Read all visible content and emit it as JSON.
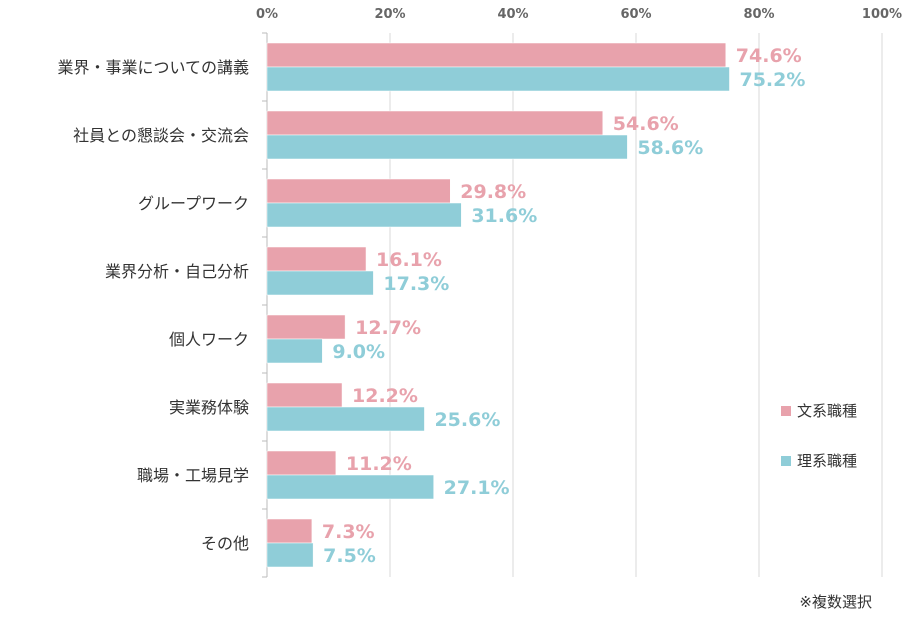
{
  "chart_data": {
    "type": "bar",
    "orientation": "horizontal",
    "categories": [
      "業界・事業についての講義",
      "社員との懇談会・交流会",
      "グループワーク",
      "業界分析・自己分析",
      "個人ワーク",
      "実業務体験",
      "職場・工場見学",
      "その他"
    ],
    "series": [
      {
        "name": "文系職種",
        "color": "#e8a2ac",
        "values": [
          74.6,
          54.6,
          29.8,
          16.1,
          12.7,
          12.2,
          11.2,
          7.3
        ]
      },
      {
        "name": "理系職種",
        "color": "#8fcdd8",
        "values": [
          75.2,
          58.6,
          31.6,
          17.3,
          9.0,
          25.6,
          27.1,
          7.5
        ]
      }
    ],
    "xlim": [
      0,
      100
    ],
    "xticks": [
      0,
      20,
      40,
      60,
      80,
      100
    ],
    "tick_suffix": "%",
    "grid": true,
    "legend_position": "right",
    "note": "※複数選択"
  }
}
